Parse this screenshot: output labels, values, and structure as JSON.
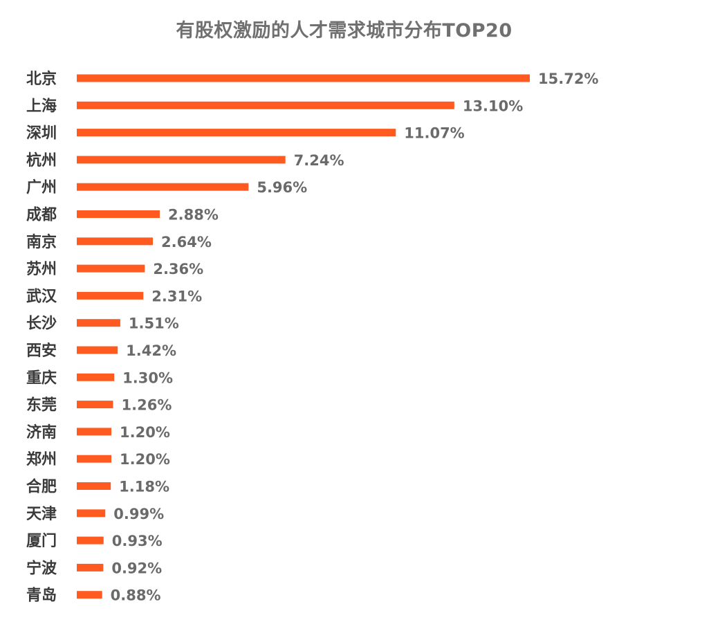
{
  "chart_data": {
    "type": "bar",
    "orientation": "horizontal",
    "title": "有股权激励的人才需求城市分布TOP20",
    "categories": [
      "北京",
      "上海",
      "深圳",
      "杭州",
      "广州",
      "成都",
      "南京",
      "苏州",
      "武汉",
      "长沙",
      "西安",
      "重庆",
      "东莞",
      "济南",
      "郑州",
      "合肥",
      "天津",
      "厦门",
      "宁波",
      "青岛"
    ],
    "values": [
      15.72,
      13.1,
      11.07,
      7.24,
      5.96,
      2.88,
      2.64,
      2.36,
      2.31,
      1.51,
      1.42,
      1.3,
      1.26,
      1.2,
      1.2,
      1.18,
      0.99,
      0.93,
      0.92,
      0.88
    ],
    "value_labels": [
      "15.72%",
      "13.10%",
      "11.07%",
      "7.24%",
      "5.96%",
      "2.88%",
      "2.64%",
      "2.36%",
      "2.31%",
      "1.51%",
      "1.42%",
      "1.30%",
      "1.26%",
      "1.20%",
      "1.20%",
      "1.18%",
      "0.99%",
      "0.93%",
      "0.92%",
      "0.88%"
    ],
    "unit": "%",
    "xlabel": "",
    "ylabel": "",
    "xlim": [
      0,
      15.72
    ],
    "grid": false,
    "legend": "none",
    "bar_color": "#ff5a1f"
  }
}
